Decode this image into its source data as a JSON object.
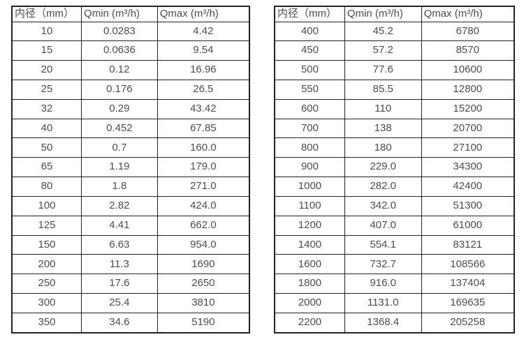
{
  "page": {
    "background": "#ffffff",
    "text_color": "#4d4d4d",
    "border_color": "#222222"
  },
  "tables": [
    {
      "name": "flow-range-small-diameters",
      "headers": [
        "内径（mm）",
        "Qmin (m³/h)",
        "Qmax (m³/h)"
      ],
      "rows": [
        [
          "10",
          "0.0283",
          "4.42"
        ],
        [
          "15",
          "0.0636",
          "9.54"
        ],
        [
          "20",
          "0.12",
          "16.96"
        ],
        [
          "25",
          "0.176",
          "26.5"
        ],
        [
          "32",
          "0.29",
          "43.42"
        ],
        [
          "40",
          "0.452",
          "67.85"
        ],
        [
          "50",
          "0.7",
          "160.0"
        ],
        [
          "65",
          "1.19",
          "179.0"
        ],
        [
          "80",
          "1.8",
          "271.0"
        ],
        [
          "100",
          "2.82",
          "424.0"
        ],
        [
          "125",
          "4.41",
          "662.0"
        ],
        [
          "150",
          "6.63",
          "954.0"
        ],
        [
          "200",
          "11.3",
          "1690"
        ],
        [
          "250",
          "17.6",
          "2650"
        ],
        [
          "300",
          "25.4",
          "3810"
        ],
        [
          "350",
          "34.6",
          "5190"
        ]
      ]
    },
    {
      "name": "flow-range-large-diameters",
      "headers": [
        "内径（mm）",
        "Qmin (m³/h)",
        "Qmax (m³/h)"
      ],
      "rows": [
        [
          "400",
          "45.2",
          "6780"
        ],
        [
          "450",
          "57.2",
          "8570"
        ],
        [
          "500",
          "77.6",
          "10600"
        ],
        [
          "550",
          "85.5",
          "12800"
        ],
        [
          "600",
          "110",
          "15200"
        ],
        [
          "700",
          "138",
          "20700"
        ],
        [
          "800",
          "180",
          "27100"
        ],
        [
          "900",
          "229.0",
          "34300"
        ],
        [
          "1000",
          "282.0",
          "42400"
        ],
        [
          "1100",
          "342.0",
          "51300"
        ],
        [
          "1200",
          "407.0",
          "61000"
        ],
        [
          "1400",
          "554.1",
          "83121"
        ],
        [
          "1600",
          "732.7",
          "108566"
        ],
        [
          "1800",
          "916.0",
          "137404"
        ],
        [
          "2000",
          "1131.0",
          "169635"
        ],
        [
          "2200",
          "1368.4",
          "205258"
        ]
      ]
    }
  ]
}
